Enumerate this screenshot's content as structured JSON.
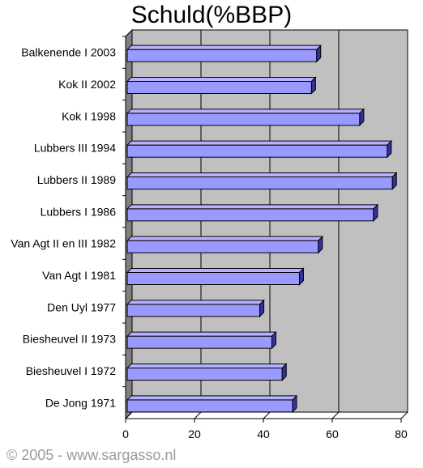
{
  "chart_data": {
    "type": "bar",
    "orientation": "horizontal",
    "title": "Schuld(%BBP)",
    "categories": [
      "Balkenende I 2003",
      "Kok II 2002",
      "Kok I 1998",
      "Lubbers III 1994",
      "Lubbers II 1989",
      "Lubbers I 1986",
      "Van Agt II en III 1982",
      "Van Agt I 1981",
      "Den Uyl 1977",
      "Biesheuvel II 1973",
      "Biesheuvel I 1972",
      "De Jong 1971"
    ],
    "values": [
      55,
      53.5,
      67.5,
      75.5,
      77,
      71.5,
      55.5,
      50,
      38.5,
      42,
      45,
      48
    ],
    "xlim": [
      0,
      80
    ],
    "xticks": [
      "0",
      "20",
      "40",
      "60",
      "80"
    ],
    "grid": true,
    "colors": {
      "bar": "#9999ff",
      "plot_bg": "#c0c0c0",
      "floor": "#808080"
    }
  },
  "footer": "© 2005 - www.sargasso.nl"
}
